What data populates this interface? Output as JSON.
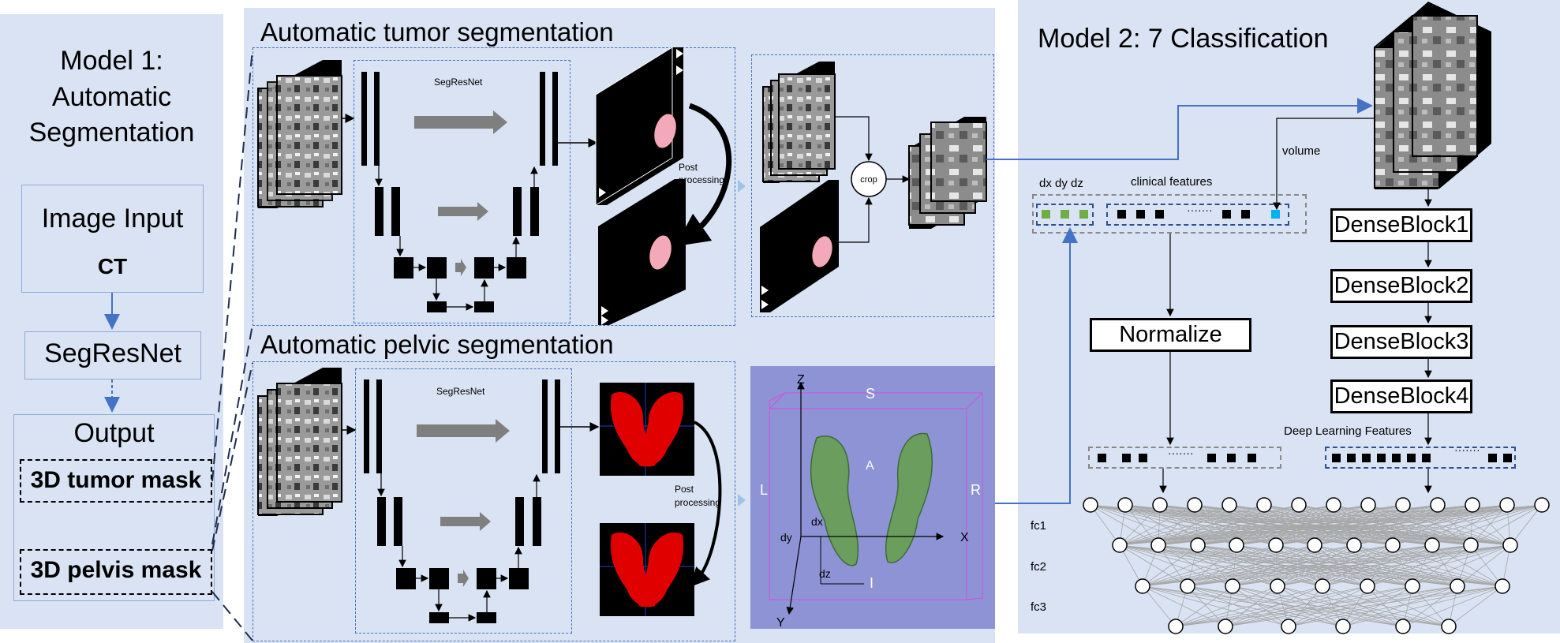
{
  "model1": {
    "title_line1": "Model 1:",
    "title_line2": "Automatic",
    "title_line3": "Segmentation",
    "input_title": "Image Input",
    "input_ct": "CT",
    "net": "SegResNet",
    "output_title": "Output",
    "tumor_mask": "3D tumor mask",
    "pelvis_mask": "3D pelvis mask"
  },
  "tumor_seg": {
    "title": "Automatic tumor segmentation",
    "net_label": "SegResNet",
    "post_label": "Post processing",
    "crop_label": "crop"
  },
  "pelvic_seg": {
    "title": "Automatic pelvic segmentation",
    "net_label": "SegResNet",
    "post_label": "Post processing",
    "axes": {
      "z": "Z",
      "x": "X",
      "y": "Y",
      "s": "S",
      "i": "I",
      "l": "L",
      "r": "R",
      "a": "A",
      "dx": "dx",
      "dy": "dy",
      "dz": "dz"
    }
  },
  "model2": {
    "title": "Model 2: 7 Classification",
    "volume_label": "volume",
    "coords_label": "dx dy dz",
    "clinical_label": "clinical features",
    "dots": "·······",
    "normalize": "Normalize",
    "dense_blocks": [
      "DenseBlock1",
      "DenseBlock2",
      "DenseBlock3",
      "DenseBlock4"
    ],
    "dl_features": "Deep Learning Features",
    "fc_labels": [
      "fc1",
      "fc2",
      "fc3"
    ]
  },
  "colors": {
    "panel_bg": "#dae3f3",
    "dashed_border": "#4472c4",
    "arrow_blue": "#4472c4",
    "feature_green": "#70ad47",
    "volume_cyan": "#00b0f0",
    "tumor_pink": "#f4a9b8",
    "pelvis_red": "#e00000",
    "bone_green": "#6b9e5e",
    "render_bg": "#8e93d6"
  }
}
